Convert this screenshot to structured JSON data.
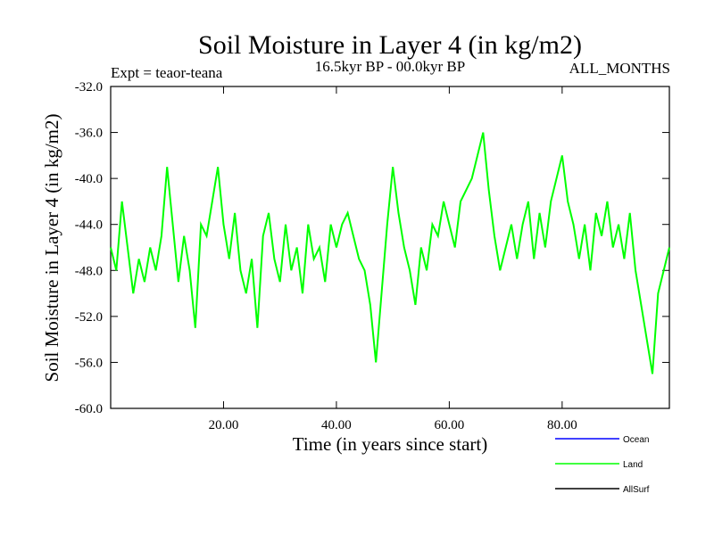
{
  "chart_data": {
    "type": "line",
    "title": "Soil Moisture in Layer 4 (in kg/m2)",
    "subtitle_left": "Expt = teaor-teana",
    "subtitle_center": "16.5kyr BP - 00.0kyr BP",
    "subtitle_right": "ALL_MONTHS",
    "xlabel": "Time (in years since start)",
    "ylabel": "Soil Moisture in Layer 4 (in kg/m2)",
    "xlim": [
      0,
      99
    ],
    "ylim": [
      -60,
      -32
    ],
    "x_ticks": [
      20,
      40,
      60,
      80
    ],
    "x_tick_labels": [
      "20.00",
      "40.00",
      "60.00",
      "80.00"
    ],
    "y_ticks": [
      -60,
      -56,
      -52,
      -48,
      -44,
      -40,
      -36,
      -32
    ],
    "y_tick_labels": [
      "-60.0",
      "-56.0",
      "-52.0",
      "-48.0",
      "-44.0",
      "-40.0",
      "-36.0",
      "-32.0"
    ],
    "legend_position": "bottom-right",
    "series": [
      {
        "name": "Ocean",
        "color": "#0000ff",
        "x": [],
        "values": []
      },
      {
        "name": "Land",
        "color": "#00ff00",
        "x": [
          0,
          1,
          2,
          3,
          4,
          5,
          6,
          7,
          8,
          9,
          10,
          11,
          12,
          13,
          14,
          15,
          16,
          17,
          18,
          19,
          20,
          21,
          22,
          23,
          24,
          25,
          26,
          27,
          28,
          29,
          30,
          31,
          32,
          33,
          34,
          35,
          36,
          37,
          38,
          39,
          40,
          41,
          42,
          43,
          44,
          45,
          46,
          47,
          48,
          49,
          50,
          51,
          52,
          53,
          54,
          55,
          56,
          57,
          58,
          59,
          60,
          61,
          62,
          63,
          64,
          65,
          66,
          67,
          68,
          69,
          70,
          71,
          72,
          73,
          74,
          75,
          76,
          77,
          78,
          79,
          80,
          81,
          82,
          83,
          84,
          85,
          86,
          87,
          88,
          89,
          90,
          91,
          92,
          93,
          94,
          95,
          96,
          97,
          98,
          99
        ],
        "values": [
          -46,
          -48,
          -42,
          -46,
          -50,
          -47,
          -49,
          -46,
          -48,
          -45,
          -39,
          -44,
          -49,
          -45,
          -48,
          -53,
          -44,
          -45,
          -42,
          -39,
          -44,
          -47,
          -43,
          -48,
          -50,
          -47,
          -53,
          -45,
          -43,
          -47,
          -49,
          -44,
          -48,
          -46,
          -50,
          -44,
          -47,
          -46,
          -49,
          -44,
          -46,
          -44,
          -43,
          -45,
          -47,
          -48,
          -51,
          -56,
          -50,
          -44,
          -39,
          -43,
          -46,
          -48,
          -51,
          -46,
          -48,
          -44,
          -45,
          -42,
          -44,
          -46,
          -42,
          -41,
          -40,
          -38,
          -36,
          -41,
          -45,
          -48,
          -46,
          -44,
          -47,
          -44,
          -42,
          -47,
          -43,
          -46,
          -42,
          -40,
          -38,
          -42,
          -44,
          -47,
          -44,
          -48,
          -43,
          -45,
          -42,
          -46,
          -44,
          -47,
          -43,
          -48,
          -51,
          -54,
          -57,
          -50,
          -48,
          -46
        ]
      },
      {
        "name": "AllSurf",
        "color": "#000000",
        "x": [],
        "values": []
      }
    ]
  }
}
